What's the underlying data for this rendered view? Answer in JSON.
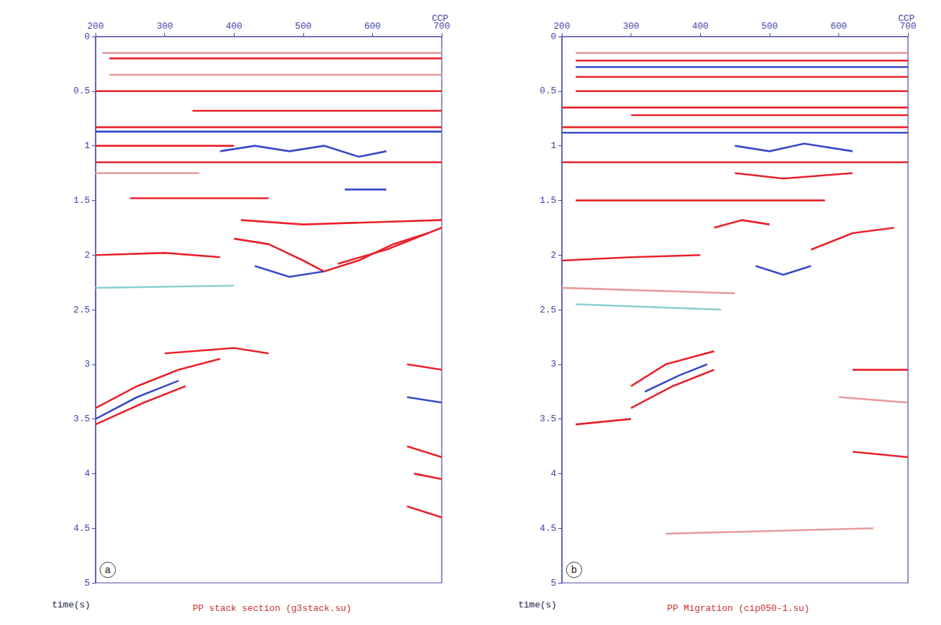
{
  "chart_data": [
    {
      "type": "line",
      "label": "a",
      "title": "PP stack section (g3stack.su)",
      "x_label": "CCP",
      "y_label": "time(s)",
      "xlim": [
        200,
        700
      ],
      "xticks": [
        200,
        300,
        400,
        500,
        600,
        700
      ],
      "ylim": [
        0,
        5
      ],
      "yticks": [
        0,
        0.5,
        1,
        1.5,
        2,
        2.5,
        3,
        3.5,
        4,
        4.5,
        5
      ],
      "grid": false,
      "line_style": "solid",
      "series": [
        {
          "color": "#e89a9a",
          "x": [
            210,
            700
          ],
          "values": [
            0.15,
            0.15
          ]
        },
        {
          "color": "#e8202a",
          "x": [
            220,
            700
          ],
          "values": [
            0.2,
            0.2
          ]
        },
        {
          "color": "#e89a9a",
          "x": [
            220,
            700
          ],
          "values": [
            0.35,
            0.35
          ]
        },
        {
          "color": "#e8202a",
          "x": [
            200,
            700
          ],
          "values": [
            0.5,
            0.5
          ]
        },
        {
          "color": "#e8202a",
          "x": [
            340,
            700
          ],
          "values": [
            0.68,
            0.68
          ]
        },
        {
          "color": "#e8202a",
          "x": [
            200,
            700
          ],
          "values": [
            0.83,
            0.83
          ]
        },
        {
          "color": "#3848c8",
          "x": [
            200,
            700
          ],
          "values": [
            0.87,
            0.87
          ]
        },
        {
          "color": "#e8202a",
          "x": [
            200,
            400
          ],
          "values": [
            1.0,
            1.0
          ]
        },
        {
          "color": "#3848c8",
          "x": [
            380,
            430,
            480,
            530,
            580,
            620
          ],
          "values": [
            1.05,
            1.0,
            1.05,
            1.0,
            1.1,
            1.05
          ]
        },
        {
          "color": "#e8202a",
          "x": [
            200,
            700
          ],
          "values": [
            1.15,
            1.15
          ]
        },
        {
          "color": "#e89a9a",
          "x": [
            200,
            350
          ],
          "values": [
            1.25,
            1.25
          ]
        },
        {
          "color": "#e8202a",
          "x": [
            250,
            450
          ],
          "values": [
            1.48,
            1.48
          ]
        },
        {
          "color": "#3848c8",
          "x": [
            560,
            620
          ],
          "values": [
            1.4,
            1.4
          ]
        },
        {
          "color": "#e8202a",
          "x": [
            410,
            500,
            600,
            700
          ],
          "values": [
            1.68,
            1.72,
            1.7,
            1.68
          ]
        },
        {
          "color": "#e8202a",
          "x": [
            400,
            450,
            500,
            530
          ],
          "values": [
            1.85,
            1.9,
            2.05,
            2.15
          ]
        },
        {
          "color": "#e8202a",
          "x": [
            530,
            580,
            630,
            680
          ],
          "values": [
            2.15,
            2.05,
            1.9,
            1.8
          ]
        },
        {
          "color": "#e8202a",
          "x": [
            200,
            300,
            380
          ],
          "values": [
            2.0,
            1.98,
            2.02
          ]
        },
        {
          "color": "#e8202a",
          "x": [
            550,
            620,
            700
          ],
          "values": [
            2.08,
            1.95,
            1.75
          ]
        },
        {
          "color": "#3848c8",
          "x": [
            430,
            480,
            530
          ],
          "values": [
            2.1,
            2.2,
            2.15
          ]
        },
        {
          "color": "#8ccfcf",
          "x": [
            200,
            400
          ],
          "values": [
            2.3,
            2.28
          ]
        },
        {
          "color": "#e8202a",
          "x": [
            200,
            260,
            320,
            380
          ],
          "values": [
            3.4,
            3.2,
            3.05,
            2.95
          ]
        },
        {
          "color": "#e8202a",
          "x": [
            200,
            270,
            330
          ],
          "values": [
            3.55,
            3.35,
            3.2
          ]
        },
        {
          "color": "#3848c8",
          "x": [
            200,
            260,
            320
          ],
          "values": [
            3.5,
            3.3,
            3.15
          ]
        },
        {
          "color": "#e8202a",
          "x": [
            300,
            400,
            450
          ],
          "values": [
            2.9,
            2.85,
            2.9
          ]
        },
        {
          "color": "#e8202a",
          "x": [
            650,
            700
          ],
          "values": [
            3.0,
            3.05
          ]
        },
        {
          "color": "#3848c8",
          "x": [
            650,
            700
          ],
          "values": [
            3.3,
            3.35
          ]
        },
        {
          "color": "#e8202a",
          "x": [
            650,
            700
          ],
          "values": [
            3.75,
            3.85
          ]
        },
        {
          "color": "#e8202a",
          "x": [
            660,
            700
          ],
          "values": [
            4.0,
            4.05
          ]
        },
        {
          "color": "#e8202a",
          "x": [
            650,
            700
          ],
          "values": [
            4.3,
            4.4
          ]
        }
      ]
    },
    {
      "type": "line",
      "label": "b",
      "title": "PP Migration (cip050-1.su)",
      "x_label": "CCP",
      "y_label": "time(s)",
      "xlim": [
        200,
        700
      ],
      "xticks": [
        200,
        300,
        400,
        500,
        600,
        700
      ],
      "ylim": [
        0,
        5
      ],
      "yticks": [
        0,
        0.5,
        1,
        1.5,
        2,
        2.5,
        3,
        3.5,
        4,
        4.5,
        5
      ],
      "grid": false,
      "line_style": "solid",
      "series": [
        {
          "color": "#e89a9a",
          "x": [
            220,
            700
          ],
          "values": [
            0.15,
            0.15
          ]
        },
        {
          "color": "#e8202a",
          "x": [
            220,
            700
          ],
          "values": [
            0.22,
            0.22
          ]
        },
        {
          "color": "#3848c8",
          "x": [
            220,
            700
          ],
          "values": [
            0.28,
            0.28
          ]
        },
        {
          "color": "#e8202a",
          "x": [
            220,
            700
          ],
          "values": [
            0.37,
            0.37
          ]
        },
        {
          "color": "#e8202a",
          "x": [
            220,
            700
          ],
          "values": [
            0.5,
            0.5
          ]
        },
        {
          "color": "#e8202a",
          "x": [
            200,
            700
          ],
          "values": [
            0.65,
            0.65
          ]
        },
        {
          "color": "#e8202a",
          "x": [
            300,
            700
          ],
          "values": [
            0.72,
            0.72
          ]
        },
        {
          "color": "#e8202a",
          "x": [
            200,
            700
          ],
          "values": [
            0.83,
            0.83
          ]
        },
        {
          "color": "#3848c8",
          "x": [
            200,
            700
          ],
          "values": [
            0.88,
            0.88
          ]
        },
        {
          "color": "#3848c8",
          "x": [
            450,
            500,
            550,
            620
          ],
          "values": [
            1.0,
            1.05,
            0.98,
            1.05
          ]
        },
        {
          "color": "#e8202a",
          "x": [
            200,
            700
          ],
          "values": [
            1.15,
            1.15
          ]
        },
        {
          "color": "#e8202a",
          "x": [
            450,
            520,
            620
          ],
          "values": [
            1.25,
            1.3,
            1.25
          ]
        },
        {
          "color": "#e8202a",
          "x": [
            220,
            580
          ],
          "values": [
            1.5,
            1.5
          ]
        },
        {
          "color": "#e8202a",
          "x": [
            420,
            460,
            500
          ],
          "values": [
            1.75,
            1.68,
            1.72
          ]
        },
        {
          "color": "#e8202a",
          "x": [
            560,
            620,
            680
          ],
          "values": [
            1.95,
            1.8,
            1.75
          ]
        },
        {
          "color": "#3848c8",
          "x": [
            480,
            520,
            560
          ],
          "values": [
            2.1,
            2.18,
            2.1
          ]
        },
        {
          "color": "#e8202a",
          "x": [
            200,
            300,
            400
          ],
          "values": [
            2.05,
            2.02,
            2.0
          ]
        },
        {
          "color": "#e89a9a",
          "x": [
            200,
            450
          ],
          "values": [
            2.3,
            2.35
          ]
        },
        {
          "color": "#8ccfcf",
          "x": [
            220,
            430
          ],
          "values": [
            2.45,
            2.5
          ]
        },
        {
          "color": "#e8202a",
          "x": [
            300,
            350,
            420
          ],
          "values": [
            3.2,
            3.0,
            2.88
          ]
        },
        {
          "color": "#3848c8",
          "x": [
            320,
            370,
            410
          ],
          "values": [
            3.25,
            3.1,
            3.0
          ]
        },
        {
          "color": "#e8202a",
          "x": [
            300,
            360,
            420
          ],
          "values": [
            3.4,
            3.2,
            3.05
          ]
        },
        {
          "color": "#e8202a",
          "x": [
            220,
            300
          ],
          "values": [
            3.55,
            3.5
          ]
        },
        {
          "color": "#e8202a",
          "x": [
            620,
            700
          ],
          "values": [
            3.05,
            3.05
          ]
        },
        {
          "color": "#e89a9a",
          "x": [
            600,
            700
          ],
          "values": [
            3.3,
            3.35
          ]
        },
        {
          "color": "#e8202a",
          "x": [
            620,
            700
          ],
          "values": [
            3.8,
            3.85
          ]
        },
        {
          "color": "#e89a9a",
          "x": [
            350,
            650
          ],
          "values": [
            4.55,
            4.5
          ]
        }
      ]
    }
  ]
}
